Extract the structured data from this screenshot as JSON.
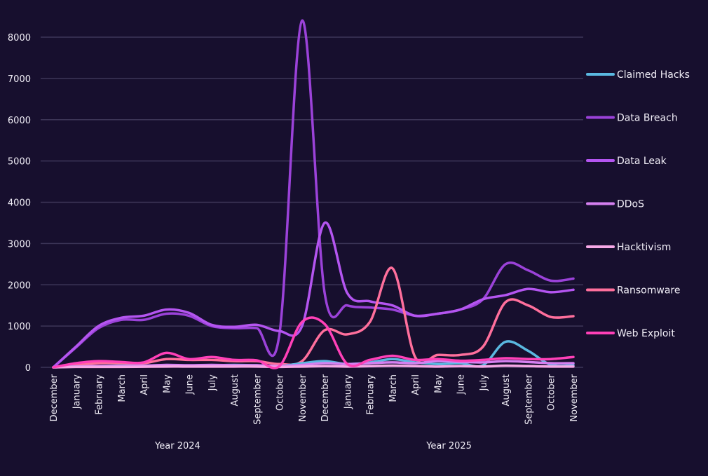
{
  "chart_data": {
    "type": "line",
    "title": "",
    "xlabel": "",
    "ylabel": "",
    "ylim": [
      0,
      8000
    ],
    "yticks": [
      0,
      1000,
      2000,
      3000,
      4000,
      5000,
      6000,
      7000,
      8000
    ],
    "grid": true,
    "legend_position": "right",
    "x": [
      "December",
      "January",
      "February",
      "March",
      "April",
      "May",
      "June",
      "July",
      "August",
      "September",
      "October",
      "November",
      "December",
      "January",
      "February",
      "March",
      "April",
      "May",
      "June",
      "July",
      "August",
      "September",
      "October",
      "November"
    ],
    "x_groups": [
      {
        "label": "Year 2024",
        "start": 0,
        "end": 11
      },
      {
        "label": "Year 2025",
        "start": 12,
        "end": 23
      }
    ],
    "series": [
      {
        "name": "Claimed Hacks",
        "color": "#5ab8e0",
        "values": [
          0,
          20,
          30,
          40,
          40,
          50,
          40,
          50,
          60,
          50,
          30,
          100,
          150,
          80,
          120,
          200,
          120,
          80,
          100,
          50,
          620,
          400,
          60,
          50
        ]
      },
      {
        "name": "Data Breach",
        "color": "#9b42d9",
        "values": [
          0,
          480,
          950,
          1150,
          1150,
          1300,
          1250,
          1000,
          950,
          950,
          800,
          8400,
          1800,
          1500,
          1450,
          1400,
          1250,
          1300,
          1400,
          1650,
          2500,
          2350,
          2100,
          2150
        ]
      },
      {
        "name": "Data Leak",
        "color": "#b455f0",
        "values": [
          0,
          500,
          1000,
          1200,
          1250,
          1400,
          1320,
          1030,
          980,
          1030,
          880,
          1000,
          3500,
          1800,
          1600,
          1500,
          1250,
          1300,
          1400,
          1650,
          1750,
          1900,
          1820,
          1880
        ]
      },
      {
        "name": "DDoS",
        "color": "#d580f0",
        "values": [
          0,
          20,
          30,
          30,
          40,
          60,
          50,
          60,
          50,
          50,
          30,
          60,
          100,
          80,
          100,
          120,
          100,
          150,
          130,
          120,
          150,
          130,
          100,
          100
        ]
      },
      {
        "name": "Hacktivism",
        "color": "#f6a8e6",
        "values": [
          0,
          10,
          10,
          10,
          15,
          20,
          20,
          20,
          20,
          20,
          10,
          20,
          30,
          20,
          30,
          40,
          30,
          20,
          30,
          20,
          40,
          30,
          20,
          20
        ]
      },
      {
        "name": "Ransomware",
        "color": "#ff6f9c",
        "values": [
          0,
          50,
          100,
          100,
          100,
          200,
          180,
          180,
          150,
          150,
          80,
          150,
          900,
          800,
          1100,
          2400,
          250,
          300,
          300,
          500,
          1580,
          1500,
          1220,
          1240
        ]
      },
      {
        "name": "Web Exploit",
        "color": "#ff40b8",
        "values": [
          0,
          100,
          150,
          130,
          120,
          350,
          200,
          250,
          180,
          170,
          30,
          1100,
          1050,
          80,
          180,
          280,
          180,
          200,
          160,
          180,
          220,
          200,
          200,
          250
        ]
      }
    ]
  }
}
